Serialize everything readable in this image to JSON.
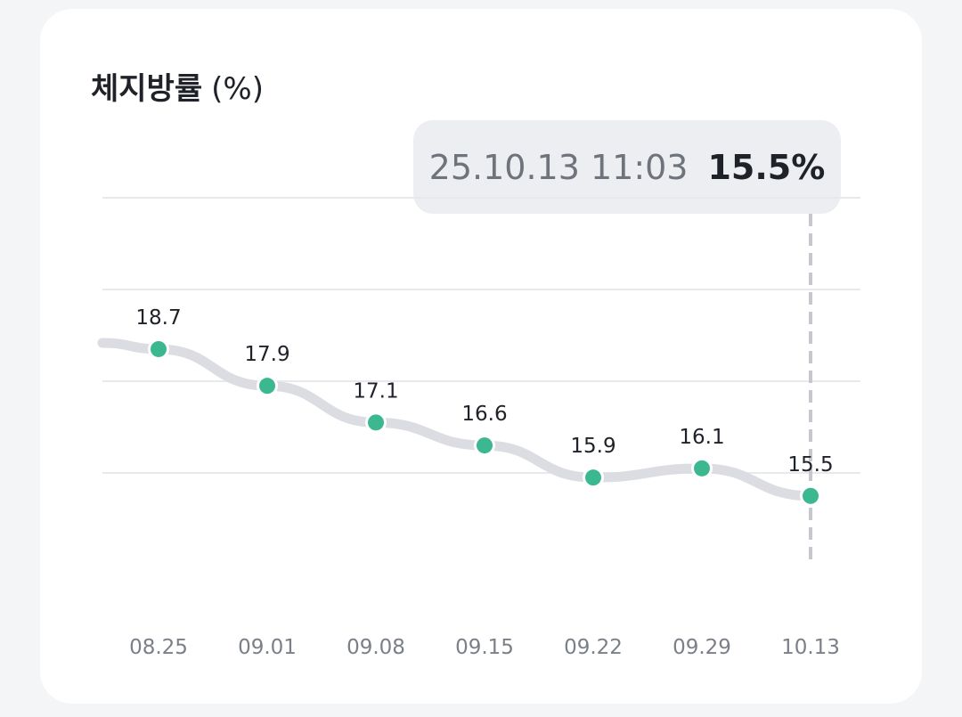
{
  "header": {
    "title": "체지방률",
    "unit": "(%)"
  },
  "tooltip": {
    "datetime": "25.10.13 11:03",
    "value": "15.5%"
  },
  "colors": {
    "point": "#3bb890",
    "line": "#dcdde2",
    "grid": "#e8e9ed",
    "cursor": "#c6c8ce",
    "label": "#1f2228",
    "tick": "#7b8088"
  },
  "chart_data": {
    "type": "line",
    "categories": [
      "08.25",
      "09.01",
      "09.08",
      "09.15",
      "09.22",
      "09.29",
      "10.13"
    ],
    "series": [
      {
        "values": [
          18.7,
          17.9,
          17.1,
          16.6,
          15.9,
          16.1,
          15.5
        ]
      }
    ],
    "data_labels": [
      "18.7",
      "17.9",
      "17.1",
      "16.6",
      "15.9",
      "16.1",
      "15.5"
    ],
    "ylim": [
      14.0,
      22.0
    ],
    "grid": true,
    "selected_index": 6
  }
}
